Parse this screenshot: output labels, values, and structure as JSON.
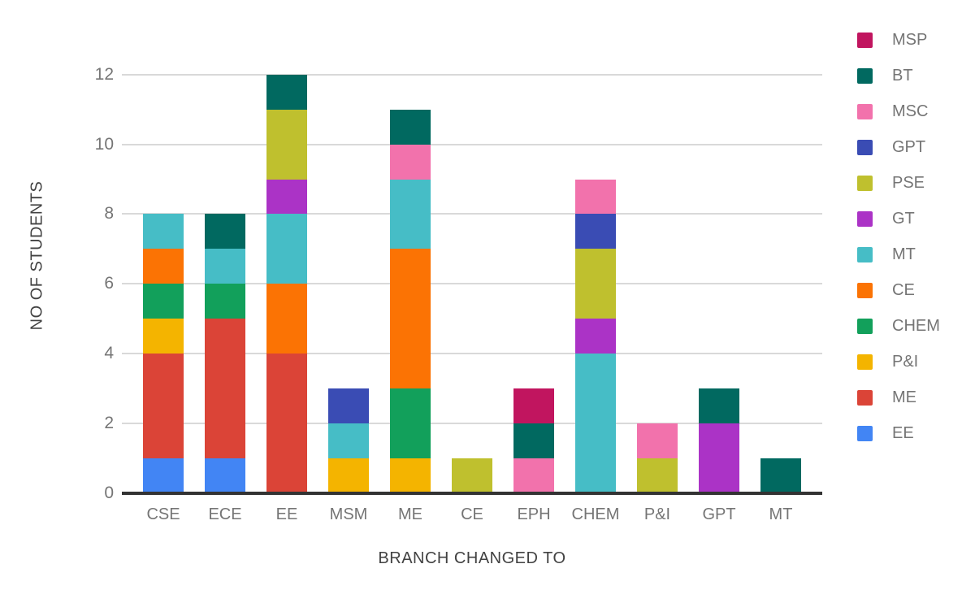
{
  "colors": {
    "background": "#FFFFFF",
    "gridline": "#D9D9D9",
    "baseline": "#333333",
    "tick_text": "#757575",
    "category_text": "#757575",
    "legend_text": "#757575",
    "axis_title_text": "#424242"
  },
  "chart_data": {
    "type": "bar",
    "stacked": true,
    "title": "",
    "xlabel": "BRANCH CHANGED TO",
    "ylabel": "NO OF STUDENTS",
    "grid": true,
    "legend_position": "right",
    "ylim": [
      0,
      12
    ],
    "yticks": [
      0,
      2,
      4,
      6,
      8,
      10,
      12
    ],
    "categories": [
      "CSE",
      "ECE",
      "EE",
      "MSM",
      "ME",
      "CE",
      "EPH",
      "CHEM",
      "P&I",
      "GPT",
      "MT"
    ],
    "series_stack_order_note": "listed bottom-to-top of each stacked bar; legend shows reverse order (top of stack first)",
    "series": [
      {
        "name": "EE",
        "color": "#4285F4",
        "values": [
          1,
          1,
          0,
          0,
          0,
          0,
          0,
          0,
          0,
          0,
          0
        ]
      },
      {
        "name": "ME",
        "color": "#DB4437",
        "values": [
          3,
          4,
          4,
          0,
          0,
          0,
          0,
          0,
          0,
          0,
          0
        ]
      },
      {
        "name": "P&I",
        "color": "#F4B400",
        "values": [
          1,
          0,
          0,
          1,
          1,
          0,
          0,
          0,
          0,
          0,
          0
        ]
      },
      {
        "name": "CHEM",
        "color": "#12A05B",
        "values": [
          1,
          1,
          0,
          0,
          2,
          0,
          0,
          0,
          0,
          0,
          0
        ]
      },
      {
        "name": "CE",
        "color": "#FB7304",
        "values": [
          1,
          0,
          2,
          0,
          4,
          0,
          0,
          0,
          0,
          0,
          0
        ]
      },
      {
        "name": "MT",
        "color": "#46BDC6",
        "values": [
          1,
          1,
          2,
          1,
          2,
          0,
          0,
          4,
          0,
          0,
          0
        ]
      },
      {
        "name": "GT",
        "color": "#AB33C6",
        "values": [
          0,
          0,
          1,
          0,
          0,
          0,
          0,
          1,
          0,
          2,
          0
        ]
      },
      {
        "name": "PSE",
        "color": "#BFC02E",
        "values": [
          0,
          0,
          2,
          0,
          0,
          1,
          0,
          2,
          1,
          0,
          0
        ]
      },
      {
        "name": "GPT",
        "color": "#3A4CB4",
        "values": [
          0,
          0,
          0,
          1,
          0,
          0,
          0,
          1,
          0,
          0,
          0
        ]
      },
      {
        "name": "MSC",
        "color": "#F272AC",
        "values": [
          0,
          0,
          0,
          0,
          1,
          0,
          1,
          1,
          1,
          0,
          0
        ]
      },
      {
        "name": "BT",
        "color": "#016960",
        "values": [
          0,
          1,
          1,
          0,
          1,
          0,
          1,
          0,
          0,
          1,
          1
        ]
      },
      {
        "name": "MSP",
        "color": "#C1155F",
        "values": [
          0,
          0,
          0,
          0,
          0,
          0,
          1,
          0,
          0,
          0,
          0
        ]
      }
    ],
    "bar_totals": {
      "CSE": 8,
      "ECE": 8,
      "EE": 12,
      "MSM": 3,
      "ME": 11,
      "CE": 1,
      "EPH": 3,
      "CHEM": 9,
      "P&I": 2,
      "GPT": 3,
      "MT": 1
    }
  }
}
